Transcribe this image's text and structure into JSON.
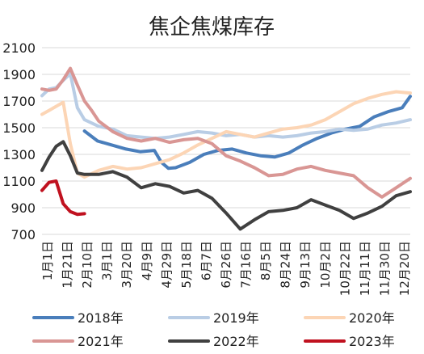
{
  "chart_data": {
    "type": "line",
    "title": "焦企焦煤库存",
    "xlabel": "",
    "ylabel": "",
    "ylim": [
      700,
      2100
    ],
    "yticks": [
      700,
      900,
      1100,
      1300,
      1500,
      1700,
      1900,
      2100
    ],
    "grid": true,
    "legend_position": "bottom",
    "x_tick_labels": [
      "1月1日",
      "1月21日",
      "2月10日",
      "3月1日",
      "3月20日",
      "4月9日",
      "4月29日",
      "5月18日",
      "6月7日",
      "6月26日",
      "7月16日",
      "8月5日",
      "8月24日",
      "9月13日",
      "10月2日",
      "10月22日",
      "11月11日",
      "11月30日",
      "12月20日"
    ],
    "x_domain": [
      1,
      365
    ],
    "series": [
      {
        "name": "2018年",
        "color": "#4a7ebb",
        "x": [
          43,
          56,
          70,
          84,
          98,
          112,
          119,
          126,
          133,
          147,
          161,
          175,
          189,
          203,
          217,
          231,
          245,
          259,
          273,
          287,
          301,
          315,
          329,
          343,
          357,
          365
        ],
        "y": [
          1475,
          1400,
          1370,
          1340,
          1320,
          1330,
          1240,
          1195,
          1200,
          1240,
          1300,
          1330,
          1340,
          1310,
          1290,
          1280,
          1310,
          1370,
          1420,
          1460,
          1490,
          1510,
          1580,
          1620,
          1650,
          1735
        ]
      },
      {
        "name": "2019年",
        "color": "#b9cde5",
        "x": [
          1,
          8,
          15,
          22,
          29,
          36,
          43,
          57,
          71,
          85,
          99,
          113,
          127,
          141,
          155,
          169,
          183,
          197,
          211,
          225,
          239,
          253,
          267,
          281,
          295,
          309,
          323,
          337,
          351,
          365
        ],
        "y": [
          1740,
          1790,
          1800,
          1855,
          1905,
          1650,
          1560,
          1510,
          1490,
          1440,
          1430,
          1420,
          1430,
          1450,
          1470,
          1460,
          1440,
          1450,
          1430,
          1440,
          1430,
          1440,
          1460,
          1470,
          1490,
          1480,
          1490,
          1520,
          1535,
          1560
        ]
      },
      {
        "name": "2020年",
        "color": "#fcd5b5",
        "x": [
          1,
          8,
          15,
          22,
          29,
          36,
          43,
          57,
          71,
          85,
          99,
          113,
          127,
          141,
          155,
          169,
          183,
          197,
          211,
          225,
          239,
          253,
          267,
          281,
          295,
          309,
          323,
          337,
          351,
          365
        ],
        "y": [
          1600,
          1630,
          1660,
          1690,
          1380,
          1160,
          1130,
          1180,
          1210,
          1190,
          1200,
          1230,
          1260,
          1310,
          1370,
          1420,
          1470,
          1450,
          1430,
          1460,
          1490,
          1500,
          1520,
          1560,
          1620,
          1680,
          1720,
          1750,
          1770,
          1760
        ]
      },
      {
        "name": "2021年",
        "color": "#d99694",
        "x": [
          1,
          8,
          15,
          22,
          29,
          36,
          43,
          50,
          57,
          71,
          85,
          99,
          113,
          127,
          141,
          155,
          169,
          183,
          197,
          211,
          225,
          239,
          253,
          267,
          281,
          295,
          309,
          323,
          337,
          351,
          365
        ],
        "y": [
          1790,
          1780,
          1790,
          1860,
          1945,
          1820,
          1700,
          1630,
          1550,
          1470,
          1420,
          1400,
          1420,
          1390,
          1410,
          1420,
          1380,
          1290,
          1250,
          1200,
          1140,
          1150,
          1190,
          1210,
          1180,
          1160,
          1140,
          1050,
          980,
          1050,
          1120
        ]
      },
      {
        "name": "2022年",
        "color": "#404040",
        "x": [
          1,
          8,
          15,
          22,
          29,
          36,
          43,
          57,
          71,
          85,
          99,
          113,
          127,
          141,
          155,
          169,
          183,
          197,
          211,
          225,
          239,
          253,
          267,
          281,
          295,
          309,
          323,
          337,
          351,
          365
        ],
        "y": [
          1180,
          1280,
          1360,
          1395,
          1290,
          1160,
          1150,
          1150,
          1170,
          1130,
          1050,
          1080,
          1060,
          1010,
          1030,
          970,
          860,
          740,
          810,
          870,
          880,
          900,
          960,
          920,
          880,
          820,
          860,
          910,
          990,
          1020
        ]
      },
      {
        "name": "2023年",
        "color": "#c0111f",
        "x": [
          1,
          8,
          15,
          22,
          29,
          36,
          43
        ],
        "y": [
          1030,
          1090,
          1100,
          930,
          870,
          850,
          855
        ]
      }
    ]
  }
}
